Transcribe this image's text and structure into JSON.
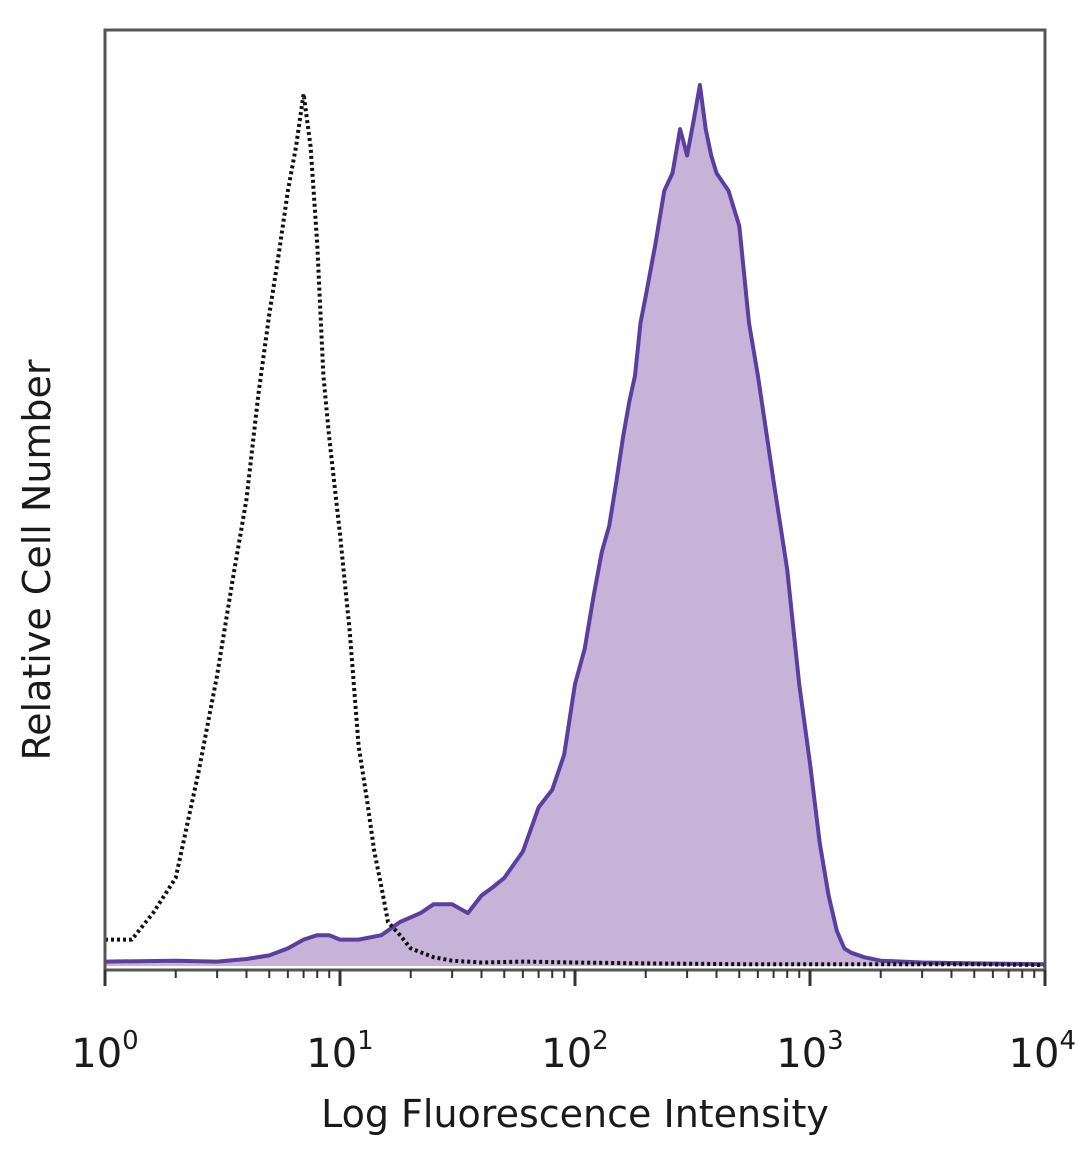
{
  "chart_data": {
    "type": "area",
    "xlabel": "Log Fluorescence Intensity",
    "ylabel": "Relative Cell Number",
    "xscale": "log",
    "xlim": [
      1,
      10000
    ],
    "ylim": [
      0,
      1
    ],
    "x_ticks": [
      {
        "base": "10",
        "exp": "0",
        "value": 1
      },
      {
        "base": "10",
        "exp": "1",
        "value": 10
      },
      {
        "base": "10",
        "exp": "2",
        "value": 100
      },
      {
        "base": "10",
        "exp": "3",
        "value": 1000
      },
      {
        "base": "10",
        "exp": "4",
        "value": 10000
      }
    ],
    "grid": false,
    "legend": "none",
    "series": [
      {
        "style": "dotted-outline",
        "color": "#111111",
        "x": [
          1.0,
          1.3,
          1.6,
          2.0,
          2.5,
          3.0,
          3.5,
          4.0,
          4.5,
          5.0,
          5.5,
          6.0,
          6.5,
          7.0,
          7.5,
          8.0,
          8.5,
          9.0,
          10.0,
          11.0,
          12.0,
          13.0,
          14.0,
          15.0,
          16.0,
          18.0,
          20.0,
          25.0,
          30.0,
          40.0,
          60.0,
          100.0,
          200.0,
          500.0,
          1000.0,
          2000.0,
          5000.0,
          10000.0
        ],
        "y": [
          0.03,
          0.03,
          0.06,
          0.1,
          0.22,
          0.33,
          0.44,
          0.53,
          0.65,
          0.74,
          0.81,
          0.88,
          0.93,
          0.99,
          0.93,
          0.82,
          0.67,
          0.6,
          0.49,
          0.38,
          0.25,
          0.19,
          0.13,
          0.09,
          0.05,
          0.035,
          0.02,
          0.01,
          0.006,
          0.004,
          0.005,
          0.004,
          0.003,
          0.002,
          0.002,
          0.002,
          0.002,
          0.001
        ]
      },
      {
        "style": "filled",
        "color": "#5b3fa0",
        "fill": "#c7b3d8",
        "x": [
          1.0,
          2.0,
          3.0,
          4.0,
          5.0,
          6.0,
          7.0,
          8.0,
          9.0,
          10.0,
          12.0,
          15.0,
          18.0,
          22.0,
          25.0,
          30.0,
          35.0,
          40.0,
          45.0,
          50.0,
          60.0,
          70.0,
          80.0,
          90.0,
          100.0,
          110.0,
          120.0,
          130.0,
          140.0,
          150.0,
          160.0,
          170.0,
          180.0,
          190.0,
          200.0,
          220.0,
          240.0,
          260.0,
          280.0,
          300.0,
          320.0,
          340.0,
          360.0,
          380.0,
          400.0,
          450.0,
          500.0,
          550.0,
          600.0,
          700.0,
          800.0,
          900.0,
          1000.0,
          1100.0,
          1200.0,
          1300.0,
          1400.0,
          1500.0,
          1700.0,
          2000.0,
          3000.0,
          5000.0,
          10000.0
        ],
        "y": [
          0.005,
          0.006,
          0.005,
          0.008,
          0.012,
          0.02,
          0.03,
          0.035,
          0.035,
          0.03,
          0.03,
          0.035,
          0.05,
          0.06,
          0.07,
          0.07,
          0.06,
          0.08,
          0.09,
          0.1,
          0.13,
          0.18,
          0.2,
          0.24,
          0.32,
          0.36,
          0.42,
          0.47,
          0.5,
          0.55,
          0.6,
          0.64,
          0.67,
          0.73,
          0.76,
          0.82,
          0.88,
          0.9,
          0.95,
          0.92,
          0.96,
          1.0,
          0.95,
          0.92,
          0.9,
          0.88,
          0.84,
          0.73,
          0.67,
          0.55,
          0.45,
          0.32,
          0.23,
          0.14,
          0.08,
          0.04,
          0.02,
          0.015,
          0.01,
          0.006,
          0.004,
          0.003,
          0.002
        ]
      }
    ]
  }
}
